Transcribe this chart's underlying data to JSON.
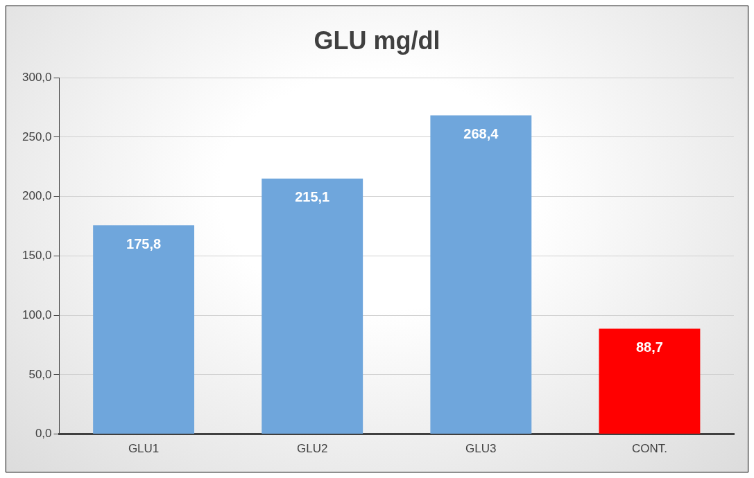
{
  "chart_data": {
    "type": "bar",
    "title": "GLU mg/dl",
    "categories": [
      "GLU1",
      "GLU2",
      "GLU3",
      "CONT."
    ],
    "values": [
      175.8,
      215.1,
      268.4,
      88.7
    ],
    "colors": [
      "#6fa6dc",
      "#6fa6dc",
      "#6fa6dc",
      "#ff0000"
    ],
    "value_labels": [
      "175,8",
      "215,1",
      "268,4",
      "88,7"
    ],
    "ylim": [
      0,
      300
    ],
    "yticks": [
      {
        "value": 0,
        "label": "0,0"
      },
      {
        "value": 50,
        "label": "50,0"
      },
      {
        "value": 100,
        "label": "100,0"
      },
      {
        "value": 150,
        "label": "150,0"
      },
      {
        "value": 200,
        "label": "200,0"
      },
      {
        "value": 250,
        "label": "250,0"
      },
      {
        "value": 300,
        "label": "300,0"
      }
    ],
    "grid": "y",
    "legend": false
  }
}
